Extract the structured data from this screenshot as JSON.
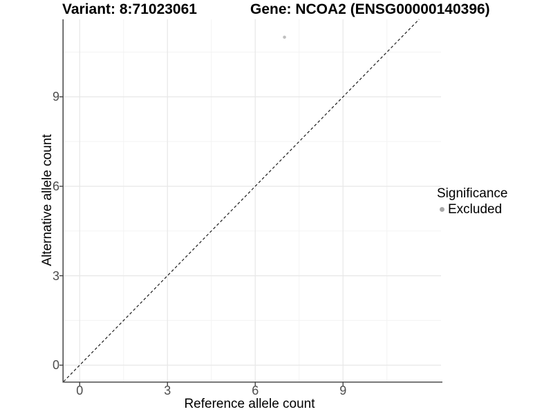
{
  "chart_data": {
    "type": "scatter",
    "title_left": "Variant: 8:71023061",
    "title_right": "Gene: NCOA2 (ENSG00000140396)",
    "xlabel": "Reference allele count",
    "ylabel": "Alternative allele count",
    "x_range": [
      -0.55,
      12.35
    ],
    "y_range": [
      -0.55,
      11.6
    ],
    "x_ticks": [
      0,
      3,
      6,
      9
    ],
    "y_ticks": [
      0,
      3,
      6,
      9
    ],
    "x_minor_ticks": [
      1.5,
      4.5,
      7.5,
      10.5
    ],
    "y_minor_ticks": [
      1.5,
      4.5,
      7.5,
      10.5
    ],
    "grid": true,
    "identity_line": {
      "style": "dashed",
      "slope": 1,
      "intercept": 0
    },
    "points": [
      {
        "x": 7,
        "y": 11,
        "significance": "Excluded"
      }
    ],
    "legend": {
      "title": "Significance",
      "position": "right",
      "entries": [
        {
          "label": "Excluded",
          "color": "#a8a8a8"
        }
      ]
    },
    "colors": {
      "background": "#ffffff",
      "axis_line": "#4d4d4d",
      "tick_mark": "#333333",
      "tick_label": "#4d4d4d",
      "grid_major": "#e7e7e7",
      "grid_minor": "#f3f3f3",
      "identity_line": "#1a1a1a",
      "point": "#bfbfbf"
    }
  }
}
